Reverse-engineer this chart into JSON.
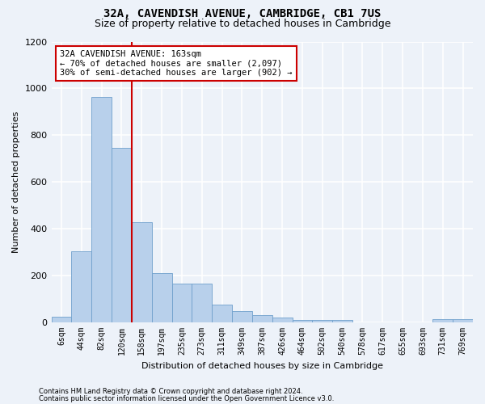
{
  "title": "32A, CAVENDISH AVENUE, CAMBRIDGE, CB1 7US",
  "subtitle": "Size of property relative to detached houses in Cambridge",
  "xlabel": "Distribution of detached houses by size in Cambridge",
  "ylabel": "Number of detached properties",
  "bar_color": "#b8d0eb",
  "bar_edge_color": "#6fa0cc",
  "bar_categories": [
    "6sqm",
    "44sqm",
    "82sqm",
    "120sqm",
    "158sqm",
    "197sqm",
    "235sqm",
    "273sqm",
    "311sqm",
    "349sqm",
    "387sqm",
    "426sqm",
    "464sqm",
    "502sqm",
    "540sqm",
    "578sqm",
    "617sqm",
    "655sqm",
    "693sqm",
    "731sqm",
    "769sqm"
  ],
  "bar_values": [
    25,
    305,
    965,
    745,
    430,
    210,
    165,
    165,
    75,
    50,
    30,
    20,
    10,
    10,
    10,
    0,
    0,
    0,
    0,
    15,
    15
  ],
  "vline_color": "#cc0000",
  "vline_position": 3.5,
  "annotation_text": "32A CAVENDISH AVENUE: 163sqm\n← 70% of detached houses are smaller (2,097)\n30% of semi-detached houses are larger (902) →",
  "annotation_box_color": "#ffffff",
  "annotation_box_edge": "#cc0000",
  "ylim": [
    0,
    1200
  ],
  "yticks": [
    0,
    200,
    400,
    600,
    800,
    1000,
    1200
  ],
  "footer1": "Contains HM Land Registry data © Crown copyright and database right 2024.",
  "footer2": "Contains public sector information licensed under the Open Government Licence v3.0.",
  "background_color": "#edf2f9",
  "grid_color": "#ffffff",
  "title_fontsize": 10,
  "subtitle_fontsize": 9,
  "ylabel_fontsize": 8,
  "xlabel_fontsize": 8,
  "tick_fontsize": 7,
  "footer_fontsize": 6,
  "annotation_fontsize": 7.5
}
